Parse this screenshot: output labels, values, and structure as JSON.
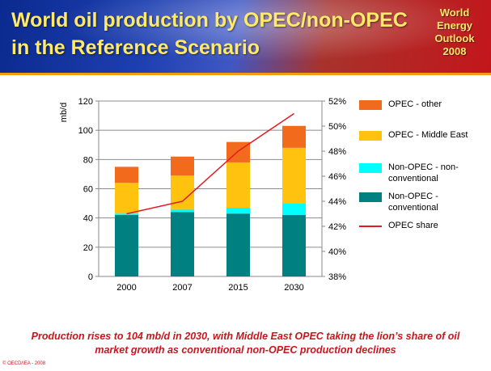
{
  "header": {
    "title_line1": "World oil production by OPEC/non-OPEC",
    "title_line2": "in the Reference Scenario",
    "badge_line1": "World",
    "badge_line2": "Energy",
    "badge_line3": "Outlook",
    "badge_line4": "2008"
  },
  "colors": {
    "opec_other": "#f26b1d",
    "opec_middle_east": "#ffc20e",
    "non_opec_nonconventional": "#00ffff",
    "non_opec_conventional": "#008080",
    "opec_share": "#e31b23"
  },
  "legend": [
    {
      "label": "OPEC - other",
      "color": "#f26b1d",
      "type": "box"
    },
    {
      "label": "OPEC - Middle East",
      "color": "#ffc20e",
      "type": "box"
    },
    {
      "label": "Non-OPEC - non-conventional",
      "color": "#00ffff",
      "type": "box"
    },
    {
      "label": "Non-OPEC - conventional",
      "color": "#008080",
      "type": "box"
    },
    {
      "label": "OPEC share",
      "color": "#e31b23",
      "type": "line"
    }
  ],
  "chart_data": {
    "type": "bar",
    "stacked": true,
    "categories": [
      "2000",
      "2007",
      "2015",
      "2030"
    ],
    "series": [
      {
        "name": "Non-OPEC - conventional",
        "values": [
          42,
          44,
          43,
          42
        ]
      },
      {
        "name": "Non-OPEC - non-conventional",
        "values": [
          1,
          2,
          4,
          8
        ]
      },
      {
        "name": "OPEC - Middle East",
        "values": [
          21,
          23,
          31,
          38
        ]
      },
      {
        "name": "OPEC - other",
        "values": [
          11,
          13,
          14,
          15
        ]
      }
    ],
    "line_series": {
      "name": "OPEC share",
      "axis": "right",
      "values": [
        43,
        44,
        48,
        51
      ]
    },
    "ylabel": "mb/d",
    "ylim": [
      0,
      120
    ],
    "yticks": [
      0,
      20,
      40,
      60,
      80,
      100,
      120
    ],
    "y2lim": [
      38,
      52
    ],
    "y2ticks": [
      "38%",
      "40%",
      "42%",
      "44%",
      "46%",
      "48%",
      "50%",
      "52%"
    ],
    "grid": true,
    "legend_position": "right"
  },
  "caption": {
    "line1": "Production rises to 104 mb/d in 2030, with Middle East OPEC taking the lion’s share of oil",
    "line2": "market growth as conventional non-OPEC production declines"
  },
  "footer": {
    "copyright": "© OECD/IEA - 2008"
  }
}
